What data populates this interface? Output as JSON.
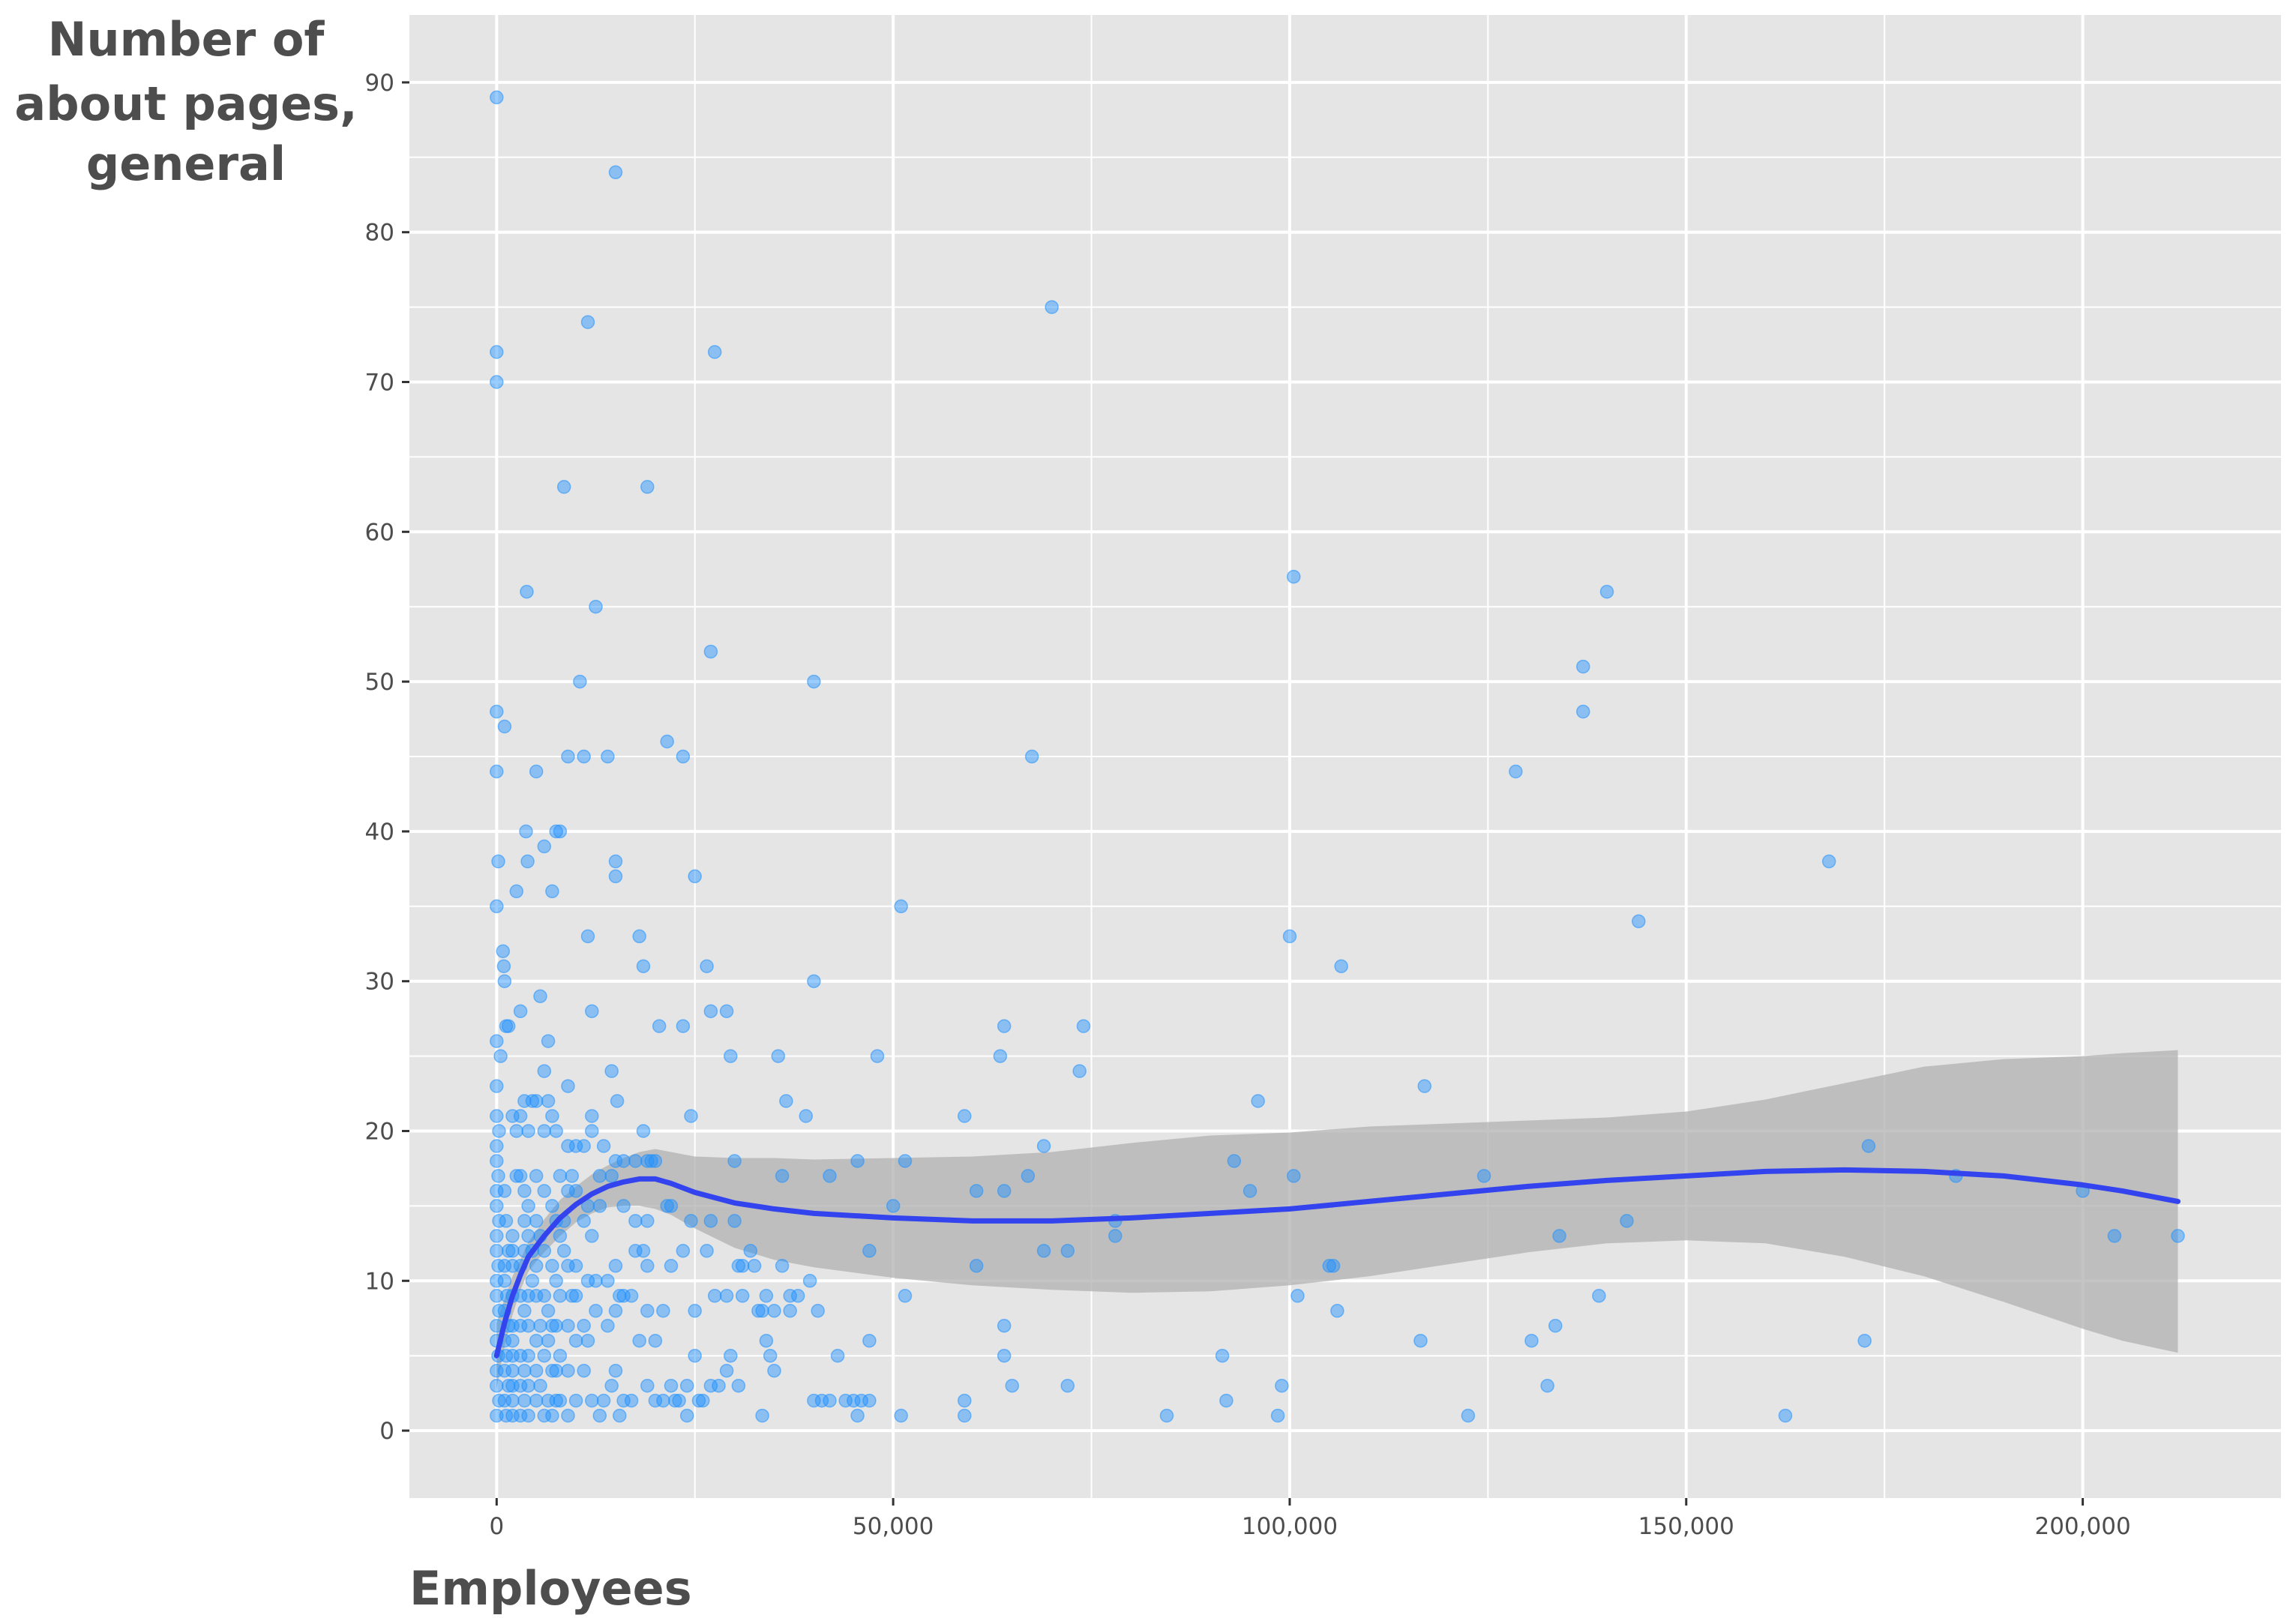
{
  "chart_data": {
    "type": "scatter",
    "title": "",
    "xlabel": "Employees",
    "ylabel_lines": [
      "Number of",
      "about pages,",
      "general"
    ],
    "xlim": [
      -11000,
      225000
    ],
    "ylim": [
      -4.5,
      94.5
    ],
    "x_ticks": [
      0,
      50000,
      100000,
      150000,
      200000
    ],
    "x_tick_labels": [
      "0",
      "50,000",
      "100,000",
      "150,000",
      "200,000"
    ],
    "y_ticks": [
      0,
      10,
      20,
      30,
      40,
      50,
      60,
      70,
      80,
      90
    ],
    "y_tick_labels": [
      "0",
      "10",
      "20",
      "30",
      "40",
      "50",
      "60",
      "70",
      "80",
      "90"
    ],
    "grid": true,
    "legend": "none",
    "colors": {
      "panel_background": "#e5e5e5",
      "grid": "#ffffff",
      "points": "#1e90ff",
      "smooth_line": "#3344ee",
      "confidence_band": "#b0b0b0"
    },
    "points": [
      [
        0,
        89
      ],
      [
        0,
        72
      ],
      [
        0,
        70
      ],
      [
        0,
        48
      ],
      [
        0,
        44
      ],
      [
        200,
        38
      ],
      [
        0,
        35
      ],
      [
        0,
        26
      ],
      [
        500,
        25
      ],
      [
        0,
        23
      ],
      [
        0,
        21
      ],
      [
        300,
        20
      ],
      [
        0,
        19
      ],
      [
        0,
        18
      ],
      [
        200,
        17
      ],
      [
        0,
        16
      ],
      [
        0,
        15
      ],
      [
        300,
        14
      ],
      [
        0,
        13
      ],
      [
        0,
        12
      ],
      [
        200,
        11
      ],
      [
        0,
        10
      ],
      [
        0,
        9
      ],
      [
        300,
        8
      ],
      [
        0,
        7
      ],
      [
        0,
        6
      ],
      [
        200,
        5
      ],
      [
        0,
        4
      ],
      [
        0,
        3
      ],
      [
        300,
        2
      ],
      [
        0,
        1
      ],
      [
        800,
        32
      ],
      [
        900,
        31
      ],
      [
        1000,
        30
      ],
      [
        1000,
        47
      ],
      [
        1200,
        27
      ],
      [
        1500,
        27
      ],
      [
        1000,
        16
      ],
      [
        1200,
        14
      ],
      [
        1500,
        12
      ],
      [
        1000,
        11
      ],
      [
        1000,
        10
      ],
      [
        1300,
        9
      ],
      [
        1000,
        8
      ],
      [
        1500,
        7
      ],
      [
        1000,
        6
      ],
      [
        1200,
        5
      ],
      [
        1000,
        4
      ],
      [
        1500,
        3
      ],
      [
        1000,
        2
      ],
      [
        1200,
        1
      ],
      [
        2000,
        21
      ],
      [
        2000,
        13
      ],
      [
        2000,
        12
      ],
      [
        2000,
        11
      ],
      [
        2000,
        9
      ],
      [
        2000,
        7
      ],
      [
        2000,
        6
      ],
      [
        2000,
        5
      ],
      [
        2000,
        4
      ],
      [
        2000,
        3
      ],
      [
        2000,
        2
      ],
      [
        2000,
        1
      ],
      [
        2500,
        20
      ],
      [
        2500,
        17
      ],
      [
        2500,
        36
      ],
      [
        3000,
        28
      ],
      [
        3000,
        21
      ],
      [
        3000,
        17
      ],
      [
        3000,
        11
      ],
      [
        3000,
        9
      ],
      [
        3000,
        7
      ],
      [
        3000,
        5
      ],
      [
        3000,
        3
      ],
      [
        3000,
        1
      ],
      [
        3500,
        22
      ],
      [
        3500,
        14
      ],
      [
        3500,
        12
      ],
      [
        3500,
        8
      ],
      [
        3500,
        4
      ],
      [
        3500,
        2
      ],
      [
        3500,
        16
      ],
      [
        3700,
        40
      ],
      [
        3800,
        56
      ],
      [
        3900,
        38
      ],
      [
        4000,
        20
      ],
      [
        4000,
        15
      ],
      [
        4000,
        13
      ],
      [
        4000,
        9
      ],
      [
        4000,
        7
      ],
      [
        4000,
        5
      ],
      [
        4000,
        3
      ],
      [
        4000,
        1
      ],
      [
        4500,
        22
      ],
      [
        4500,
        12
      ],
      [
        4500,
        10
      ],
      [
        5000,
        44
      ],
      [
        5000,
        22
      ],
      [
        5000,
        17
      ],
      [
        5000,
        14
      ],
      [
        5000,
        11
      ],
      [
        5000,
        9
      ],
      [
        5000,
        6
      ],
      [
        5000,
        4
      ],
      [
        5000,
        2
      ],
      [
        5500,
        29
      ],
      [
        5500,
        13
      ],
      [
        5500,
        7
      ],
      [
        5500,
        3
      ],
      [
        6000,
        39
      ],
      [
        6000,
        24
      ],
      [
        6000,
        20
      ],
      [
        6000,
        16
      ],
      [
        6000,
        12
      ],
      [
        6000,
        9
      ],
      [
        6000,
        5
      ],
      [
        6000,
        1
      ],
      [
        6500,
        26
      ],
      [
        6500,
        22
      ],
      [
        6500,
        8
      ],
      [
        6500,
        6
      ],
      [
        6500,
        2
      ],
      [
        7000,
        36
      ],
      [
        7000,
        21
      ],
      [
        7000,
        15
      ],
      [
        7000,
        11
      ],
      [
        7000,
        7
      ],
      [
        7000,
        4
      ],
      [
        7000,
        1
      ],
      [
        7500,
        40
      ],
      [
        7500,
        20
      ],
      [
        7500,
        14
      ],
      [
        7500,
        10
      ],
      [
        7500,
        7
      ],
      [
        7500,
        4
      ],
      [
        7500,
        2
      ],
      [
        8000,
        40
      ],
      [
        8000,
        17
      ],
      [
        8000,
        13
      ],
      [
        8000,
        9
      ],
      [
        8000,
        5
      ],
      [
        8000,
        2
      ],
      [
        8500,
        63
      ],
      [
        8500,
        14
      ],
      [
        8500,
        12
      ],
      [
        9000,
        45
      ],
      [
        9000,
        23
      ],
      [
        9000,
        19
      ],
      [
        9000,
        16
      ],
      [
        9000,
        11
      ],
      [
        9000,
        7
      ],
      [
        9000,
        4
      ],
      [
        9000,
        1
      ],
      [
        9500,
        17
      ],
      [
        9500,
        9
      ],
      [
        10000,
        19
      ],
      [
        10000,
        16
      ],
      [
        10000,
        11
      ],
      [
        10000,
        9
      ],
      [
        10000,
        6
      ],
      [
        10000,
        2
      ],
      [
        10500,
        50
      ],
      [
        11000,
        45
      ],
      [
        11000,
        19
      ],
      [
        11000,
        14
      ],
      [
        11000,
        7
      ],
      [
        11000,
        4
      ],
      [
        11500,
        74
      ],
      [
        11500,
        33
      ],
      [
        11500,
        15
      ],
      [
        11500,
        10
      ],
      [
        11500,
        6
      ],
      [
        12000,
        28
      ],
      [
        12000,
        21
      ],
      [
        12000,
        20
      ],
      [
        12000,
        13
      ],
      [
        12000,
        2
      ],
      [
        12500,
        55
      ],
      [
        12500,
        10
      ],
      [
        12500,
        8
      ],
      [
        13000,
        17
      ],
      [
        13000,
        15
      ],
      [
        13000,
        1
      ],
      [
        13500,
        19
      ],
      [
        13500,
        2
      ],
      [
        14000,
        45
      ],
      [
        14000,
        10
      ],
      [
        14000,
        7
      ],
      [
        14500,
        24
      ],
      [
        14500,
        17
      ],
      [
        14500,
        3
      ],
      [
        15000,
        84
      ],
      [
        15000,
        38
      ],
      [
        15000,
        37
      ],
      [
        15000,
        18
      ],
      [
        15000,
        11
      ],
      [
        15000,
        8
      ],
      [
        15000,
        4
      ],
      [
        15200,
        22
      ],
      [
        15500,
        1
      ],
      [
        15500,
        9
      ],
      [
        16000,
        18
      ],
      [
        16000,
        15
      ],
      [
        16000,
        9
      ],
      [
        16000,
        2
      ],
      [
        17000,
        9
      ],
      [
        17000,
        2
      ],
      [
        17500,
        18
      ],
      [
        17500,
        12
      ],
      [
        17500,
        14
      ],
      [
        18000,
        33
      ],
      [
        18000,
        6
      ],
      [
        18500,
        31
      ],
      [
        18500,
        20
      ],
      [
        18500,
        12
      ],
      [
        19000,
        63
      ],
      [
        19000,
        18
      ],
      [
        19000,
        14
      ],
      [
        19000,
        11
      ],
      [
        19000,
        8
      ],
      [
        19000,
        3
      ],
      [
        19500,
        18
      ],
      [
        20000,
        18
      ],
      [
        20000,
        2
      ],
      [
        20000,
        6
      ],
      [
        20500,
        27
      ],
      [
        21000,
        8
      ],
      [
        21000,
        2
      ],
      [
        21500,
        15
      ],
      [
        21500,
        46
      ],
      [
        22000,
        15
      ],
      [
        22000,
        11
      ],
      [
        22000,
        3
      ],
      [
        22500,
        2
      ],
      [
        23000,
        2
      ],
      [
        23500,
        45
      ],
      [
        23500,
        27
      ],
      [
        23500,
        12
      ],
      [
        24000,
        3
      ],
      [
        24000,
        1
      ],
      [
        24500,
        14
      ],
      [
        24500,
        21
      ],
      [
        25000,
        37
      ],
      [
        25000,
        8
      ],
      [
        25000,
        5
      ],
      [
        25500,
        2
      ],
      [
        26000,
        2
      ],
      [
        26500,
        31
      ],
      [
        26500,
        12
      ],
      [
        27000,
        52
      ],
      [
        27000,
        28
      ],
      [
        27000,
        14
      ],
      [
        27000,
        3
      ],
      [
        27500,
        9
      ],
      [
        27500,
        72
      ],
      [
        28000,
        3
      ],
      [
        29000,
        28
      ],
      [
        29000,
        9
      ],
      [
        29000,
        4
      ],
      [
        29500,
        25
      ],
      [
        29500,
        5
      ],
      [
        30000,
        18
      ],
      [
        30000,
        14
      ],
      [
        30500,
        11
      ],
      [
        30500,
        3
      ],
      [
        31000,
        11
      ],
      [
        31000,
        9
      ],
      [
        32000,
        12
      ],
      [
        32500,
        11
      ],
      [
        33000,
        8
      ],
      [
        33500,
        8
      ],
      [
        33500,
        1
      ],
      [
        34000,
        6
      ],
      [
        34000,
        9
      ],
      [
        34500,
        5
      ],
      [
        35000,
        8
      ],
      [
        35000,
        4
      ],
      [
        35500,
        25
      ],
      [
        36000,
        17
      ],
      [
        36000,
        11
      ],
      [
        36500,
        22
      ],
      [
        37000,
        9
      ],
      [
        37000,
        8
      ],
      [
        38000,
        9
      ],
      [
        39000,
        21
      ],
      [
        39500,
        10
      ],
      [
        40000,
        2
      ],
      [
        40000,
        50
      ],
      [
        40000,
        30
      ],
      [
        40500,
        8
      ],
      [
        41000,
        2
      ],
      [
        42000,
        17
      ],
      [
        42000,
        2
      ],
      [
        43000,
        5
      ],
      [
        44000,
        2
      ],
      [
        45000,
        2
      ],
      [
        45500,
        1
      ],
      [
        45500,
        18
      ],
      [
        46000,
        2
      ],
      [
        47000,
        12
      ],
      [
        47000,
        6
      ],
      [
        47000,
        2
      ],
      [
        48000,
        25
      ],
      [
        50000,
        15
      ],
      [
        51000,
        35
      ],
      [
        51000,
        1
      ],
      [
        51500,
        9
      ],
      [
        51500,
        18
      ],
      [
        59000,
        21
      ],
      [
        59000,
        2
      ],
      [
        59000,
        1
      ],
      [
        60500,
        11
      ],
      [
        60500,
        16
      ],
      [
        63500,
        25
      ],
      [
        64000,
        27
      ],
      [
        64000,
        16
      ],
      [
        64000,
        7
      ],
      [
        64000,
        5
      ],
      [
        65000,
        3
      ],
      [
        67000,
        17
      ],
      [
        67500,
        45
      ],
      [
        69000,
        12
      ],
      [
        69000,
        19
      ],
      [
        70000,
        75
      ],
      [
        72000,
        12
      ],
      [
        72000,
        3
      ],
      [
        73500,
        24
      ],
      [
        74000,
        27
      ],
      [
        78000,
        14
      ],
      [
        78000,
        13
      ],
      [
        84500,
        1
      ],
      [
        91500,
        5
      ],
      [
        92000,
        2
      ],
      [
        93000,
        18
      ],
      [
        95000,
        16
      ],
      [
        96000,
        22
      ],
      [
        98500,
        1
      ],
      [
        99000,
        3
      ],
      [
        100000,
        33
      ],
      [
        100500,
        57
      ],
      [
        100500,
        17
      ],
      [
        101000,
        9
      ],
      [
        105000,
        11
      ],
      [
        105500,
        11
      ],
      [
        106000,
        8
      ],
      [
        106500,
        31
      ],
      [
        116500,
        6
      ],
      [
        117000,
        23
      ],
      [
        122500,
        1
      ],
      [
        124500,
        17
      ],
      [
        128500,
        44
      ],
      [
        130500,
        6
      ],
      [
        132500,
        3
      ],
      [
        133500,
        7
      ],
      [
        134000,
        13
      ],
      [
        137000,
        51
      ],
      [
        137000,
        48
      ],
      [
        139000,
        9
      ],
      [
        140000,
        56
      ],
      [
        142500,
        14
      ],
      [
        144000,
        34
      ],
      [
        162500,
        1
      ],
      [
        168000,
        38
      ],
      [
        172500,
        6
      ],
      [
        173000,
        19
      ],
      [
        184000,
        17
      ],
      [
        200000,
        16
      ],
      [
        204000,
        13
      ],
      [
        212000,
        13
      ]
    ],
    "smooth": {
      "x": [
        0,
        1000,
        2000,
        3000,
        4000,
        5000,
        6000,
        8000,
        10000,
        12000,
        14000,
        16000,
        18000,
        20000,
        22000,
        25000,
        30000,
        35000,
        40000,
        50000,
        60000,
        70000,
        80000,
        90000,
        100000,
        110000,
        120000,
        130000,
        140000,
        150000,
        160000,
        170000,
        180000,
        190000,
        200000,
        205000,
        212000
      ],
      "y": [
        5.0,
        7.2,
        9.0,
        10.4,
        11.6,
        12.3,
        13.0,
        14.2,
        15.1,
        15.8,
        16.3,
        16.6,
        16.8,
        16.8,
        16.5,
        15.9,
        15.2,
        14.8,
        14.5,
        14.2,
        14.0,
        14.0,
        14.2,
        14.5,
        14.8,
        15.3,
        15.8,
        16.3,
        16.7,
        17.0,
        17.3,
        17.4,
        17.3,
        17.0,
        16.4,
        16.0,
        15.3
      ],
      "lower": [
        2.8,
        5.6,
        7.7,
        9.4,
        10.6,
        11.3,
        11.9,
        13.0,
        13.9,
        14.5,
        14.9,
        15.0,
        15.0,
        14.8,
        14.4,
        13.5,
        12.2,
        11.4,
        10.9,
        10.2,
        9.7,
        9.4,
        9.2,
        9.3,
        9.7,
        10.3,
        11.1,
        11.9,
        12.5,
        12.7,
        12.5,
        11.6,
        10.3,
        8.6,
        6.8,
        6.0,
        5.2
      ],
      "upper": [
        7.2,
        8.8,
        10.3,
        11.4,
        12.6,
        13.3,
        14.1,
        15.4,
        16.3,
        17.1,
        17.7,
        18.2,
        18.6,
        18.8,
        18.6,
        18.3,
        18.2,
        18.2,
        18.1,
        18.2,
        18.3,
        18.6,
        19.2,
        19.7,
        19.9,
        20.3,
        20.5,
        20.7,
        20.9,
        21.3,
        22.1,
        23.2,
        24.3,
        24.8,
        25.0,
        25.2,
        25.4
      ]
    }
  }
}
